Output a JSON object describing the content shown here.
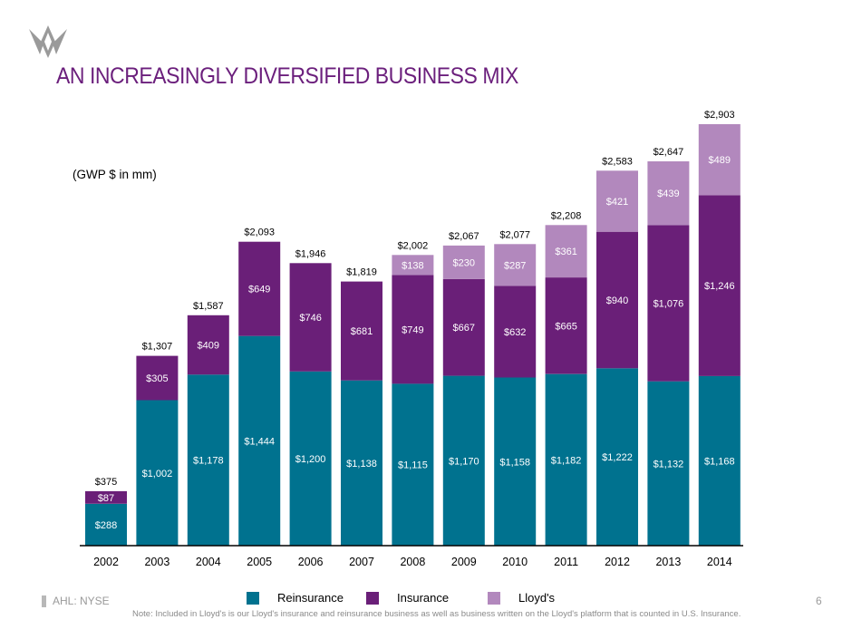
{
  "header": {
    "title": "AN INCREASINGLY DIVERSIFIED BUSINESS MIX"
  },
  "units_label": "(GWP $ in mm)",
  "footer": {
    "ticker": "AHL: NYSE",
    "page_number": "6",
    "note": "Note:  Included in Lloyd's is our Lloyd's insurance and reinsurance business as well as business written on the Lloyd's platform that is counted in U.S. Insurance."
  },
  "colors": {
    "reinsurance": "#00728f",
    "insurance": "#6a1f78",
    "lloyds": "#b288bd",
    "title": "#6b1f7c"
  },
  "chart_data": {
    "type": "bar",
    "stacked": true,
    "title": "AN INCREASINGLY DIVERSIFIED BUSINESS MIX",
    "ylabel": "(GWP $ in mm)",
    "ylim": [
      0,
      2903
    ],
    "categories": [
      "2002",
      "2003",
      "2004",
      "2005",
      "2006",
      "2007",
      "2008",
      "2009",
      "2010",
      "2011",
      "2012",
      "2013",
      "2014"
    ],
    "series": [
      {
        "name": "Reinsurance",
        "color": "#00728f",
        "values": [
          288,
          1002,
          1178,
          1444,
          1200,
          1138,
          1115,
          1170,
          1158,
          1182,
          1222,
          1132,
          1168
        ],
        "labels": [
          "$288",
          "$1,002",
          "$1,178",
          "$1,444",
          "$1,200",
          "$1,138",
          "$1,115",
          "$1,170",
          "$1,158",
          "$1,182",
          "$1,222",
          "$1,132",
          "$1,168"
        ]
      },
      {
        "name": "Insurance",
        "color": "#6a1f78",
        "values": [
          87,
          305,
          409,
          649,
          746,
          681,
          749,
          667,
          632,
          665,
          940,
          1076,
          1246
        ],
        "labels": [
          "$87",
          "$305",
          "$409",
          "$649",
          "$746",
          "$681",
          "$749",
          "$667",
          "$632",
          "$665",
          "$940",
          "$1,076",
          "$1,246"
        ]
      },
      {
        "name": "Lloyd's",
        "color": "#b288bd",
        "values": [
          0,
          0,
          0,
          0,
          0,
          0,
          138,
          230,
          287,
          361,
          421,
          439,
          489
        ],
        "labels": [
          "",
          "",
          "",
          "",
          "",
          "",
          "$138",
          "$230",
          "$287",
          "$361",
          "$421",
          "$439",
          "$489"
        ]
      }
    ],
    "totals": [
      375,
      1307,
      1587,
      2093,
      1946,
      1819,
      2002,
      2067,
      2077,
      2208,
      2583,
      2647,
      2903
    ],
    "total_labels": [
      "$375",
      "$1,307",
      "$1,587",
      "$2,093",
      "$1,946",
      "$1,819",
      "$2,002",
      "$2,067",
      "$2,077",
      "$2,208",
      "$2,583",
      "$2,647",
      "$2,903"
    ],
    "legend": [
      "Reinsurance",
      "Insurance",
      "Lloyd's"
    ]
  }
}
